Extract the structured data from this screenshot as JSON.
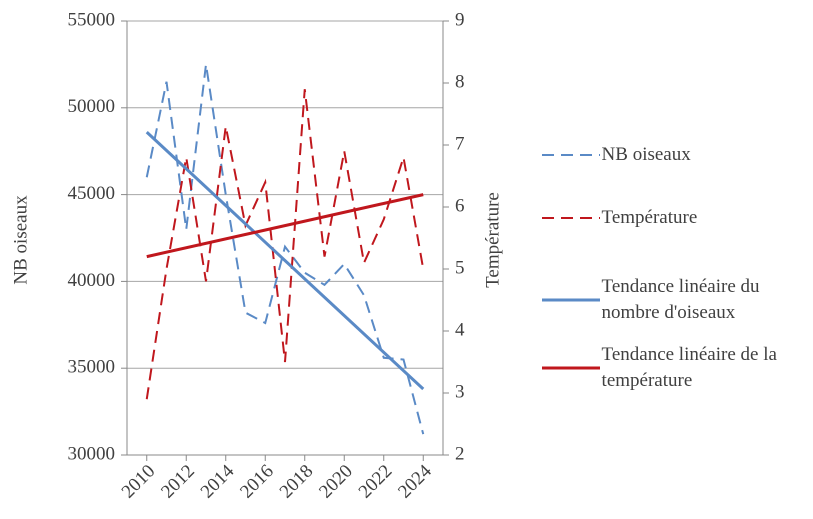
{
  "chart_data": {
    "type": "line",
    "x": [
      2010,
      2011,
      2012,
      2013,
      2014,
      2015,
      2016,
      2017,
      2018,
      2019,
      2020,
      2021,
      2022,
      2023,
      2024
    ],
    "xlim": [
      2009,
      2025
    ],
    "xticks": [
      2010,
      2012,
      2014,
      2016,
      2018,
      2020,
      2022,
      2024
    ],
    "ylim": [
      30000,
      55000
    ],
    "yticks": [
      30000,
      35000,
      40000,
      45000,
      50000,
      55000
    ],
    "y2lim": [
      2,
      9
    ],
    "y2ticks": [
      2,
      3,
      4,
      5,
      6,
      7,
      8,
      9
    ],
    "ylabel": "NB oiseaux",
    "y2label": "Température",
    "grid": true,
    "legend": "right",
    "series": [
      {
        "name": "NB oiseaux",
        "color": "#5a8ac6",
        "style": "dashed",
        "values": [
          46000,
          51500,
          43000,
          52500,
          45000,
          38200,
          37600,
          42000,
          40500,
          39800,
          41000,
          39200,
          35600,
          35500,
          31200
        ]
      },
      {
        "name": "Température",
        "color": "#c0171d",
        "style": "dashed",
        "axis": "y2",
        "values": [
          2.9,
          5.0,
          6.8,
          4.8,
          7.3,
          5.7,
          6.4,
          3.5,
          7.9,
          5.2,
          6.9,
          5.1,
          5.8,
          6.8,
          5.0
        ]
      },
      {
        "name": "Tendance linéaire du nombre d'oiseaux",
        "color": "#5a8ac6",
        "style": "solid",
        "x": [
          2010,
          2024
        ],
        "values": [
          48600,
          33800
        ]
      },
      {
        "name": "Tendance linéaire de la température",
        "color": "#c0171d",
        "style": "solid",
        "axis": "y2",
        "x": [
          2010,
          2024
        ],
        "values": [
          5.2,
          6.2
        ]
      }
    ]
  }
}
